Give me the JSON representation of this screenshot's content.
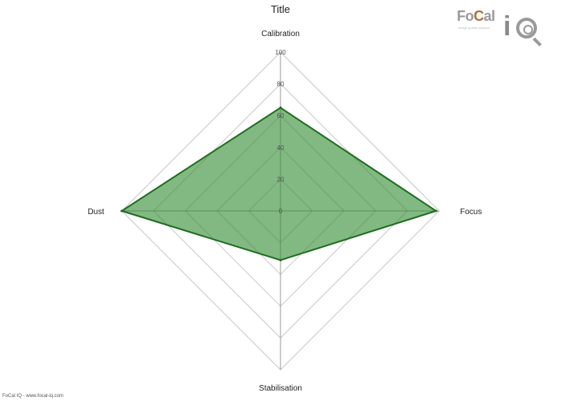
{
  "logo": {
    "word_a": "Fo",
    "word_c": "C",
    "word_b": "al",
    "tagline": "image quality analysis",
    "iq": "i"
  },
  "footer": "FoCal IQ - www.focal-iq.com",
  "chart_data": {
    "type": "radar",
    "title": "Title",
    "axes": [
      "Calibration",
      "Focus",
      "Stabilisation",
      "Dust"
    ],
    "ticks": [
      "0",
      "20",
      "40",
      "60",
      "80",
      "100"
    ],
    "rlim": [
      0,
      100
    ],
    "grid": true,
    "series": [
      {
        "name": "",
        "values": [
          65,
          98,
          31,
          100
        ],
        "color": "#1e6e1e",
        "fill": "#2e8b2e"
      }
    ]
  }
}
